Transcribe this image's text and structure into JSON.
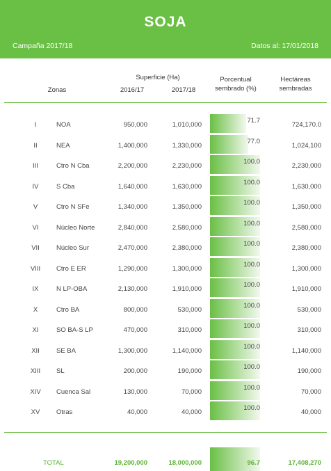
{
  "header": {
    "title": "SOJA",
    "campaign": "Campaña 2017/18",
    "date": "Datos al: 17/01/2018"
  },
  "columns": {
    "zonas": "Zonas",
    "superficie": "Superficie (Ha)",
    "y1": "2016/17",
    "y2": "2017/18",
    "porcentual_1": "Porcentual",
    "porcentual_2": "sembrado (%)",
    "hectareas_1": "Hectáreas",
    "hectareas_2": "sembradas"
  },
  "rows": [
    {
      "roman": "I",
      "zone": "NOA",
      "s16": "950,000",
      "s17": "1,010,000",
      "pct": 71.7,
      "pct_label": "71.7",
      "ha": "724,170.0"
    },
    {
      "roman": "II",
      "zone": "NEA",
      "s16": "1,400,000",
      "s17": "1,330,000",
      "pct": 77.0,
      "pct_label": "77.0",
      "ha": "1,024,100"
    },
    {
      "roman": "III",
      "zone": "Ctro N Cba",
      "s16": "2,200,000",
      "s17": "2,230,000",
      "pct": 100.0,
      "pct_label": "100.0",
      "ha": "2,230,000"
    },
    {
      "roman": "IV",
      "zone": "S Cba",
      "s16": "1,640,000",
      "s17": "1,630,000",
      "pct": 100.0,
      "pct_label": "100.0",
      "ha": "1,630,000"
    },
    {
      "roman": "V",
      "zone": "Ctro N SFe",
      "s16": "1,340,000",
      "s17": "1,350,000",
      "pct": 100.0,
      "pct_label": "100.0",
      "ha": "1,350,000"
    },
    {
      "roman": "VI",
      "zone": "Núcleo Norte",
      "s16": "2,840,000",
      "s17": "2,580,000",
      "pct": 100.0,
      "pct_label": "100.0",
      "ha": "2,580,000"
    },
    {
      "roman": "VII",
      "zone": "Núcleo Sur",
      "s16": "2,470,000",
      "s17": "2,380,000",
      "pct": 100.0,
      "pct_label": "100.0",
      "ha": "2,380,000"
    },
    {
      "roman": "VIII",
      "zone": "Ctro E ER",
      "s16": "1,290,000",
      "s17": "1,300,000",
      "pct": 100.0,
      "pct_label": "100.0",
      "ha": "1,300,000"
    },
    {
      "roman": "IX",
      "zone": "N LP-OBA",
      "s16": "2,130,000",
      "s17": "1,910,000",
      "pct": 100.0,
      "pct_label": "100.0",
      "ha": "1,910,000"
    },
    {
      "roman": "X",
      "zone": "Ctro BA",
      "s16": "800,000",
      "s17": "530,000",
      "pct": 100.0,
      "pct_label": "100.0",
      "ha": "530,000"
    },
    {
      "roman": "XI",
      "zone": "SO BA-S LP",
      "s16": "470,000",
      "s17": "310,000",
      "pct": 100.0,
      "pct_label": "100.0",
      "ha": "310,000"
    },
    {
      "roman": "XII",
      "zone": "SE BA",
      "s16": "1,300,000",
      "s17": "1,140,000",
      "pct": 100.0,
      "pct_label": "100.0",
      "ha": "1,140,000"
    },
    {
      "roman": "XIII",
      "zone": "SL",
      "s16": "200,000",
      "s17": "190,000",
      "pct": 100.0,
      "pct_label": "100.0",
      "ha": "190,000"
    },
    {
      "roman": "XIV",
      "zone": "Cuenca Sal",
      "s16": "130,000",
      "s17": "70,000",
      "pct": 100.0,
      "pct_label": "100.0",
      "ha": "70,000"
    },
    {
      "roman": "XV",
      "zone": "Otras",
      "s16": "40,000",
      "s17": "40,000",
      "pct": 100.0,
      "pct_label": "100.0",
      "ha": "40,000"
    }
  ],
  "total": {
    "label": "TOTAL",
    "s16": "19,200,000",
    "s17": "18,000,000",
    "pct": 96.7,
    "pct_label": "96.7",
    "ha": "17,408,270"
  },
  "colors": {
    "accent": "#6abf45",
    "total_text": "#5cb335"
  }
}
